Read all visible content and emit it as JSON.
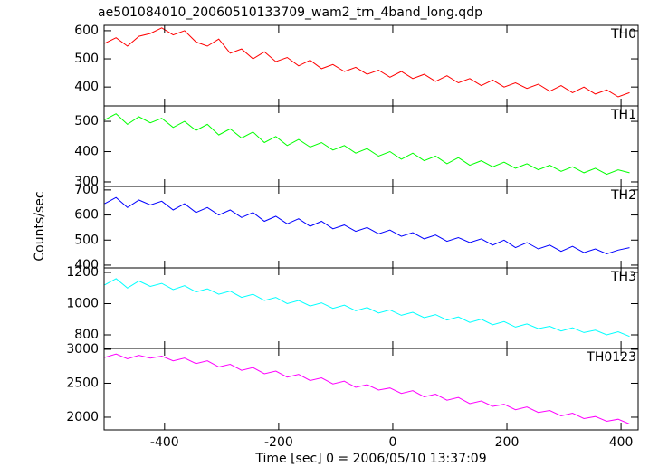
{
  "title": "ae501084010_20060510133709_wam2_trn_4band_long.qdp",
  "x_label": "Time [sec] 0 = 2006/05/10 13:37:09",
  "y_label": "Counts/sec",
  "chart_data": [
    {
      "type": "line",
      "xlim": [
        -506,
        430
      ],
      "xticks": [
        -400,
        -200,
        0,
        200,
        400
      ],
      "ylim": [
        333,
        619
      ],
      "yticks": [
        400,
        500,
        600
      ],
      "x": [
        -505,
        -485,
        -465,
        -445,
        -425,
        -405,
        -385,
        -365,
        -345,
        -325,
        -305,
        -285,
        -265,
        -245,
        -225,
        -205,
        -185,
        -165,
        -145,
        -125,
        -105,
        -85,
        -65,
        -45,
        -25,
        -5,
        15,
        35,
        55,
        75,
        95,
        115,
        135,
        155,
        175,
        195,
        215,
        235,
        255,
        275,
        295,
        315,
        335,
        355,
        375,
        395,
        415
      ],
      "series": [
        {
          "name": "TH0",
          "color": "#ff0000",
          "values": [
            555,
            575,
            545,
            580,
            590,
            610,
            585,
            600,
            560,
            545,
            570,
            520,
            535,
            500,
            525,
            490,
            505,
            475,
            495,
            465,
            480,
            455,
            470,
            445,
            460,
            435,
            455,
            430,
            445,
            420,
            440,
            415,
            430,
            405,
            425,
            400,
            415,
            395,
            410,
            385,
            405,
            380,
            400,
            375,
            390,
            365,
            380
          ]
        }
      ]
    },
    {
      "type": "line",
      "xlim": [
        -506,
        430
      ],
      "xticks": [
        -400,
        -200,
        0,
        200,
        400
      ],
      "ylim": [
        285,
        551
      ],
      "yticks": [
        300,
        400,
        500
      ],
      "x": [
        -505,
        -485,
        -465,
        -445,
        -425,
        -405,
        -385,
        -365,
        -345,
        -325,
        -305,
        -285,
        -265,
        -245,
        -225,
        -205,
        -185,
        -165,
        -145,
        -125,
        -105,
        -85,
        -65,
        -45,
        -25,
        -5,
        15,
        35,
        55,
        75,
        95,
        115,
        135,
        155,
        175,
        195,
        215,
        235,
        255,
        275,
        295,
        315,
        335,
        355,
        375,
        395,
        415
      ],
      "series": [
        {
          "name": "TH1",
          "color": "#00ff00",
          "values": [
            505,
            525,
            490,
            515,
            495,
            510,
            480,
            500,
            470,
            490,
            455,
            475,
            445,
            465,
            430,
            450,
            420,
            440,
            415,
            430,
            405,
            420,
            395,
            410,
            385,
            400,
            375,
            395,
            370,
            385,
            360,
            380,
            355,
            370,
            350,
            365,
            345,
            360,
            340,
            355,
            335,
            350,
            330,
            345,
            325,
            340,
            330
          ]
        }
      ]
    },
    {
      "type": "line",
      "xlim": [
        -506,
        430
      ],
      "xticks": [
        -400,
        -200,
        0,
        200,
        400
      ],
      "ylim": [
        389,
        714
      ],
      "yticks": [
        400,
        500,
        600,
        700
      ],
      "x": [
        -505,
        -485,
        -465,
        -445,
        -425,
        -405,
        -385,
        -365,
        -345,
        -325,
        -305,
        -285,
        -265,
        -245,
        -225,
        -205,
        -185,
        -165,
        -145,
        -125,
        -105,
        -85,
        -65,
        -45,
        -25,
        -5,
        15,
        35,
        55,
        75,
        95,
        115,
        135,
        155,
        175,
        195,
        215,
        235,
        255,
        275,
        295,
        315,
        335,
        355,
        375,
        395,
        415
      ],
      "series": [
        {
          "name": "TH2",
          "color": "#0000ff",
          "values": [
            645,
            670,
            630,
            660,
            640,
            655,
            620,
            645,
            610,
            630,
            600,
            620,
            590,
            610,
            575,
            595,
            565,
            585,
            555,
            575,
            545,
            560,
            535,
            550,
            525,
            540,
            515,
            530,
            505,
            520,
            495,
            510,
            490,
            505,
            480,
            500,
            470,
            490,
            465,
            480,
            455,
            475,
            450,
            465,
            445,
            460,
            470
          ]
        }
      ]
    },
    {
      "type": "line",
      "xlim": [
        -506,
        430
      ],
      "xticks": [
        -400,
        -200,
        0,
        200,
        400
      ],
      "ylim": [
        713,
        1229
      ],
      "yticks": [
        800,
        1000,
        1200
      ],
      "x": [
        -505,
        -485,
        -465,
        -445,
        -425,
        -405,
        -385,
        -365,
        -345,
        -325,
        -305,
        -285,
        -265,
        -245,
        -225,
        -205,
        -185,
        -165,
        -145,
        -125,
        -105,
        -85,
        -65,
        -45,
        -25,
        -5,
        15,
        35,
        55,
        75,
        95,
        115,
        135,
        155,
        175,
        195,
        215,
        235,
        255,
        275,
        295,
        315,
        335,
        355,
        375,
        395,
        415
      ],
      "series": [
        {
          "name": "TH3",
          "color": "#00ffff",
          "values": [
            1120,
            1160,
            1100,
            1145,
            1110,
            1130,
            1090,
            1115,
            1075,
            1095,
            1060,
            1080,
            1040,
            1060,
            1020,
            1040,
            1000,
            1020,
            985,
            1005,
            970,
            990,
            955,
            975,
            940,
            960,
            925,
            945,
            910,
            930,
            895,
            915,
            880,
            900,
            865,
            885,
            850,
            870,
            840,
            855,
            825,
            845,
            815,
            830,
            800,
            820,
            790
          ]
        }
      ]
    },
    {
      "type": "line",
      "xlim": [
        -506,
        430
      ],
      "xticks": [
        -400,
        -200,
        0,
        200,
        400
      ],
      "ylim": [
        1813,
        3013
      ],
      "yticks": [
        2000,
        2500,
        3000
      ],
      "x": [
        -505,
        -485,
        -465,
        -445,
        -425,
        -405,
        -385,
        -365,
        -345,
        -325,
        -305,
        -285,
        -265,
        -245,
        -225,
        -205,
        -185,
        -165,
        -145,
        -125,
        -105,
        -85,
        -65,
        -45,
        -25,
        -5,
        15,
        35,
        55,
        75,
        95,
        115,
        135,
        155,
        175,
        195,
        215,
        235,
        255,
        275,
        295,
        315,
        335,
        355,
        375,
        395,
        415
      ],
      "series": [
        {
          "name": "TH0123",
          "color": "#ff00ff",
          "values": [
            2880,
            2930,
            2860,
            2910,
            2870,
            2900,
            2830,
            2870,
            2790,
            2830,
            2740,
            2780,
            2690,
            2730,
            2640,
            2680,
            2590,
            2630,
            2540,
            2580,
            2490,
            2530,
            2440,
            2480,
            2400,
            2430,
            2350,
            2390,
            2300,
            2340,
            2250,
            2290,
            2200,
            2240,
            2160,
            2190,
            2110,
            2150,
            2070,
            2100,
            2020,
            2060,
            1980,
            2010,
            1940,
            1970,
            1900
          ]
        }
      ]
    }
  ]
}
